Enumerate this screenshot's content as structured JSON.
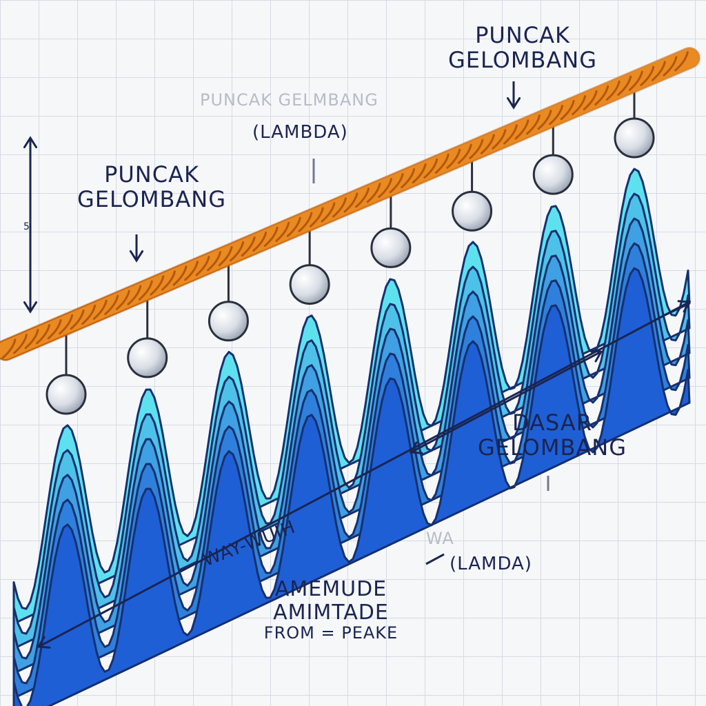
{
  "labels": {
    "puncak_top": "PUNCAK GELOMBANG",
    "puncak_left": "PUNCAK GELOMBANG",
    "faded_top": "PUNCAK GELMBANG",
    "lambda_top": "(LAMBDA)",
    "scale_mark": "5",
    "dasar": "DASAR GELOMBANG",
    "lamda_bottom": "(LAMDA)",
    "faded_bottom": "WA",
    "wavelength": "WAY-WUIH",
    "amplitude_line1": "AMEMUDE",
    "amplitude_line2": "AMIMTADE",
    "amplitude_line3": "FROM = PEAKE"
  },
  "colors": {
    "rope": "#e98a22",
    "rope_dark": "#b3570e",
    "wave_light": "#5ee1ef",
    "wave_dark": "#1f5fd6",
    "ink": "#1b2450",
    "ball": "#e8ecf2"
  },
  "diagram": {
    "crest_count": 8,
    "wave_layers": 5
  }
}
